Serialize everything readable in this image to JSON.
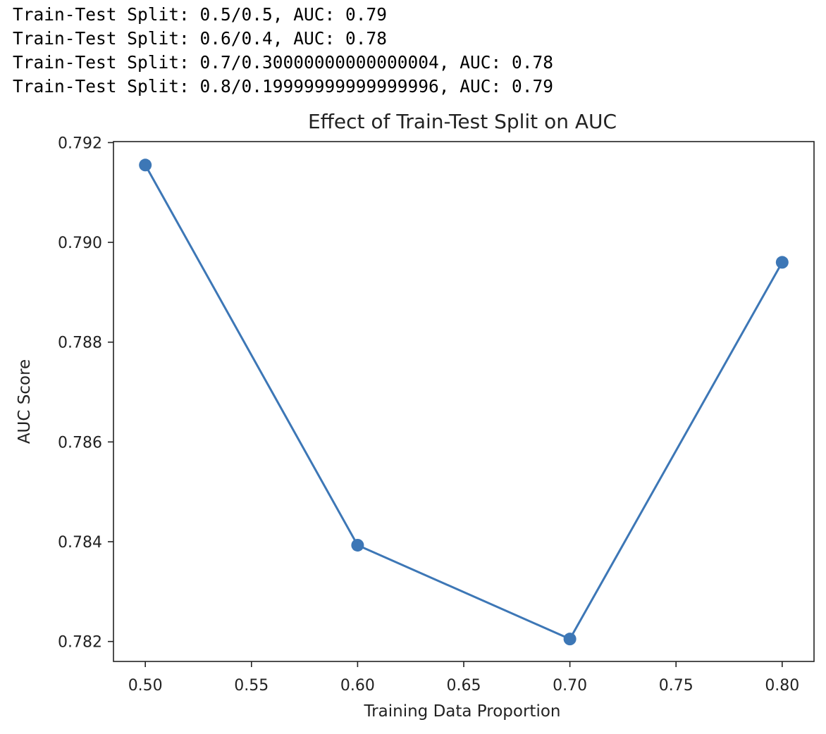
{
  "output": {
    "lines": [
      "Train-Test Split: 0.5/0.5, AUC: 0.79",
      "Train-Test Split: 0.6/0.4, AUC: 0.78",
      "Train-Test Split: 0.7/0.30000000000000004, AUC: 0.78",
      "Train-Test Split: 0.8/0.19999999999999996, AUC: 0.79"
    ]
  },
  "chart_data": {
    "type": "line",
    "title": "Effect of Train-Test Split on AUC",
    "xlabel": "Training Data Proportion",
    "ylabel": "AUC Score",
    "x": [
      0.5,
      0.6,
      0.7,
      0.8
    ],
    "series": [
      {
        "values": [
          0.79155,
          0.78393,
          0.78205,
          0.7896
        ],
        "color": "#3d77b6",
        "marker": "circle"
      }
    ],
    "xticks": [
      0.5,
      0.55,
      0.6,
      0.65,
      0.7,
      0.75,
      0.8
    ],
    "xtick_labels": [
      "0.50",
      "0.55",
      "0.60",
      "0.65",
      "0.70",
      "0.75",
      "0.80"
    ],
    "yticks": [
      0.782,
      0.784,
      0.786,
      0.788,
      0.79,
      0.792
    ],
    "ytick_labels": [
      "0.782",
      "0.784",
      "0.786",
      "0.788",
      "0.790",
      "0.792"
    ],
    "xlim": [
      0.485,
      0.815
    ],
    "ylim": [
      0.7816,
      0.79202
    ],
    "grid": false,
    "legend": false
  }
}
